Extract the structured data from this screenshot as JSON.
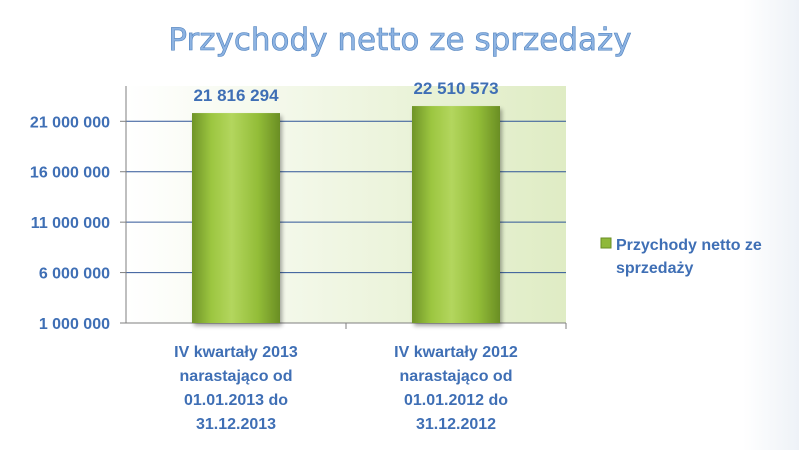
{
  "chart_data": {
    "type": "bar",
    "title": "Przychody netto ze sprzedaży",
    "categories": [
      "IV kwartały 2013 narastająco od 01.01.2013 do 31.12.2013",
      "IV kwartały 2012 narastająco od 01.01.2012 do 31.12.2012"
    ],
    "category_lines": [
      [
        "IV kwartały 2013",
        "narastająco od",
        "01.01.2013 do",
        "31.12.2013"
      ],
      [
        "IV kwartały 2012",
        "narastająco od",
        "01.01.2012 do",
        "31.12.2012"
      ]
    ],
    "series": [
      {
        "name": "Przychody netto ze sprzedaży",
        "values": [
          21816294,
          22510573
        ],
        "color": "#8fb83a"
      }
    ],
    "data_labels": [
      "21 816 294",
      "22 510 573"
    ],
    "yticks": [
      1000000,
      6000000,
      11000000,
      16000000,
      21000000
    ],
    "ytick_labels": [
      "1 000 000",
      "6 000 000",
      "11 000 000",
      "16 000 000",
      "21 000 000"
    ],
    "ylim": [
      1000000,
      24500000
    ],
    "grid": true,
    "legend": {
      "position": "right",
      "lines": [
        "Przychody netto ze",
        "sprzedaży"
      ]
    },
    "colors": {
      "title": "#8db3e2",
      "text": "#3f6fb5",
      "plot_bg": "#e8f1d4",
      "grid": "#2f5597",
      "bar": "#8fb83a"
    }
  }
}
